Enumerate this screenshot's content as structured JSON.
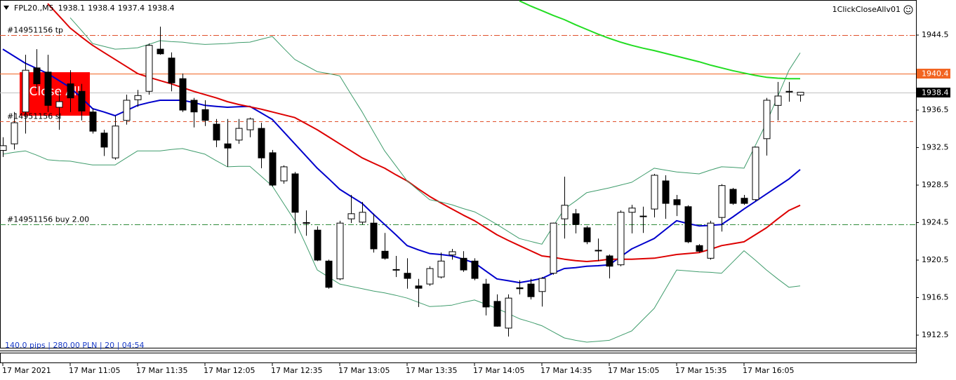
{
  "chart_data": {
    "type": "candlestick",
    "symbol": "FPL20.,M5",
    "ea_name": "1ClickCloseAllv01",
    "button_label": "Close All",
    "status_text": "140.0 pips | 280.00 PLN | 20 | 04:54",
    "categories": [
      "17 Mar 2021",
      null,
      null,
      null,
      null,
      null,
      "17 Mar 11:05",
      null,
      null,
      null,
      null,
      null,
      "17 Mar 11:35",
      null,
      null,
      null,
      null,
      null,
      "17 Mar 12:05",
      null,
      null,
      null,
      null,
      null,
      "17 Mar 12:35",
      null,
      null,
      null,
      null,
      null,
      "17 Mar 13:05",
      null,
      null,
      null,
      null,
      null,
      "17 Mar 13:35",
      null,
      null,
      null,
      null,
      null,
      "17 Mar 14:05",
      null,
      null,
      null,
      null,
      null,
      "17 Mar 14:35",
      null,
      null,
      null,
      null,
      null,
      "17 Mar 15:05",
      null,
      null,
      null,
      null,
      null,
      "17 Mar 15:35",
      null,
      null,
      null,
      null,
      null,
      "17 Mar 16:05",
      null,
      null,
      null,
      null,
      null
    ],
    "open": [
      1932.2,
      1932.9,
      1936.3,
      1941.0,
      1940.55,
      1936.8,
      1939.3,
      1938.5,
      1936.3,
      1934.05,
      1931.4,
      1935.4,
      1937.6,
      1938.5,
      1943.0,
      1942.05,
      1939.85,
      1937.55,
      1936.55,
      1935.0,
      1932.9,
      1933.3,
      1934.4,
      1934.55,
      1931.95,
      1928.95,
      1929.7,
      1924.5,
      1923.7,
      1920.4,
      1918.5,
      1924.9,
      1924.55,
      1924.45,
      1921.45,
      1919.45,
      1919.1,
      1917.75,
      1917.95,
      1918.7,
      1921.05,
      1920.7,
      1920.4,
      1917.95,
      1916.1,
      1913.25,
      1917.55,
      1917.95,
      1917.15,
      1919.1,
      1924.9,
      1925.45,
      1923.95,
      1921.55,
      1920.95,
      1920.0,
      1925.6,
      1925.2,
      1925.95,
      1928.95,
      1926.95,
      1926.2,
      1922.05,
      1920.7,
      1925.05,
      1928.05,
      1927.1,
      1926.95,
      1933.45,
      1937.0,
      1938.5,
      1938.1
    ],
    "high": [
      1933.6,
      1936.3,
      1942.4,
      1943.0,
      1942.4,
      1938.5,
      1940.75,
      1939.3,
      1936.65,
      1934.4,
      1935.9,
      1938.15,
      1938.65,
      1943.6,
      1945.4,
      1942.65,
      1940.4,
      1937.8,
      1937.55,
      1935.55,
      1935.55,
      1935.55,
      1935.7,
      1935.15,
      1932.25,
      1930.6,
      1929.9,
      1925.8,
      1924.1,
      1920.55,
      1924.7,
      1927.45,
      1926.7,
      1925.45,
      1923.4,
      1920.95,
      1920.7,
      1918.5,
      1919.85,
      1921.3,
      1921.7,
      1921.45,
      1920.7,
      1918.5,
      1916.85,
      1916.85,
      1918.35,
      1918.5,
      1918.7,
      1924.5,
      1929.4,
      1925.95,
      1924.15,
      1922.8,
      1921.1,
      1925.8,
      1926.4,
      1926.2,
      1929.7,
      1929.55,
      1927.45,
      1926.35,
      1922.2,
      1924.7,
      1928.6,
      1928.2,
      1927.45,
      1932.6,
      1937.8,
      1939.5,
      1939.5,
      1938.4
    ],
    "low": [
      1931.5,
      1932.3,
      1934.0,
      1938.5,
      1936.3,
      1934.4,
      1936.3,
      1935.4,
      1934.0,
      1931.6,
      1931.2,
      1934.95,
      1936.85,
      1938.15,
      1942.4,
      1938.5,
      1936.3,
      1934.65,
      1934.8,
      1932.55,
      1930.45,
      1932.9,
      1933.6,
      1930.3,
      1928.35,
      1928.65,
      1923.35,
      1923.1,
      1920.4,
      1917.45,
      1918.35,
      1924.45,
      1924.3,
      1921.3,
      1920.55,
      1918.7,
      1917.45,
      1915.5,
      1917.75,
      1918.55,
      1920.55,
      1919.25,
      1918.35,
      1914.6,
      1913.4,
      1912.35,
      1916.85,
      1916.3,
      1915.55,
      1918.95,
      1922.8,
      1923.35,
      1922.2,
      1920.4,
      1918.55,
      1919.85,
      1923.35,
      1923.4,
      1925.05,
      1924.9,
      1925.2,
      1922.3,
      1921.3,
      1920.55,
      1923.55,
      1926.4,
      1926.4,
      1926.8,
      1931.65,
      1935.4,
      1937.4,
      1937.4
    ],
    "close": [
      1932.7,
      1935.15,
      1940.75,
      1939.3,
      1937.0,
      1937.4,
      1937.8,
      1936.4,
      1934.25,
      1932.55,
      1934.8,
      1937.55,
      1938.05,
      1943.4,
      1942.5,
      1939.4,
      1936.5,
      1936.3,
      1935.4,
      1933.3,
      1932.45,
      1934.55,
      1935.55,
      1931.4,
      1928.5,
      1930.45,
      1925.6,
      1924.45,
      1920.5,
      1917.6,
      1924.45,
      1925.45,
      1925.6,
      1921.7,
      1920.7,
      1919.5,
      1918.55,
      1917.5,
      1919.6,
      1920.4,
      1921.4,
      1919.45,
      1918.55,
      1915.5,
      1913.45,
      1916.45,
      1917.45,
      1916.6,
      1918.55,
      1924.45,
      1926.35,
      1924.3,
      1922.45,
      1921.5,
      1919.85,
      1925.6,
      1926.05,
      1925.15,
      1929.55,
      1926.55,
      1926.4,
      1922.45,
      1921.45,
      1924.45,
      1928.45,
      1926.55,
      1926.55,
      1932.55,
      1937.55,
      1938.0,
      1938.45,
      1938.4
    ],
    "up_color": "#ffffff",
    "down_color": "#000000",
    "wick_color": "#000000",
    "overlays": [
      {
        "color": "#0000cc",
        "line_width": 2,
        "values": [
          1943.0,
          1942.25,
          1941.5,
          1940.95,
          1940.4,
          1939.65,
          1938.9,
          1937.8,
          1936.65,
          1936.3,
          1935.9,
          1936.45,
          1937.0,
          1937.3,
          1937.55,
          1937.55,
          1937.55,
          1937.3,
          1937.0,
          1936.9,
          1936.8,
          1936.85,
          1936.9,
          1936.2,
          1935.5,
          1934.2,
          1932.9,
          1931.6,
          1930.3,
          1929.2,
          1928.05,
          1927.3,
          1926.55,
          1925.4,
          1924.3,
          1923.2,
          1922.05,
          1921.6,
          1921.2,
          1921.1,
          1920.95,
          1920.6,
          1920.2,
          1919.35,
          1918.5,
          1918.3,
          1918.1,
          1918.3,
          1918.55,
          1919.1,
          1919.6,
          1919.7,
          1919.85,
          1919.9,
          1920.0,
          1920.85,
          1921.7,
          1922.25,
          1922.8,
          1923.75,
          1924.7,
          1924.4,
          1924.15,
          1924.2,
          1924.3,
          1925.1,
          1925.95,
          1926.75,
          1927.55,
          1928.35,
          1929.15,
          1930.15
        ]
      },
      {
        "color": "#dd0000",
        "line_width": 2,
        "values": [
          null,
          null,
          null,
          null,
          1947.85,
          1946.55,
          1945.25,
          1944.3,
          1943.4,
          1942.65,
          1941.9,
          1941.15,
          1940.4,
          1940.0,
          1939.65,
          1939.3,
          1938.9,
          1938.5,
          1938.15,
          1937.8,
          1937.4,
          1937.1,
          1936.85,
          1936.6,
          1936.3,
          1936.0,
          1935.7,
          1935.05,
          1934.4,
          1933.65,
          1932.9,
          1932.15,
          1931.4,
          1930.85,
          1930.3,
          1929.6,
          1928.95,
          1928.1,
          1927.3,
          1926.6,
          1925.95,
          1925.3,
          1924.7,
          1923.95,
          1923.2,
          1922.6,
          1922.05,
          1921.5,
          1920.95,
          1920.8,
          1920.6,
          1920.45,
          1920.35,
          1920.45,
          1920.6,
          1920.6,
          1920.6,
          1920.65,
          1920.7,
          1920.9,
          1921.1,
          1921.2,
          1921.3,
          1921.65,
          1922.05,
          1922.25,
          1922.45,
          1923.2,
          1923.95,
          1924.9,
          1925.8,
          1926.35
        ]
      },
      {
        "color": "#22dd22",
        "line_width": 2,
        "values": [
          null,
          null,
          null,
          null,
          null,
          null,
          null,
          null,
          null,
          null,
          null,
          null,
          null,
          null,
          null,
          null,
          null,
          null,
          null,
          null,
          null,
          null,
          null,
          null,
          null,
          null,
          null,
          null,
          null,
          null,
          null,
          null,
          null,
          null,
          null,
          null,
          null,
          null,
          null,
          null,
          null,
          null,
          null,
          null,
          null,
          null,
          1948.15,
          1947.6,
          1947.1,
          1946.6,
          1946.15,
          1945.6,
          1945.1,
          1944.6,
          1944.15,
          1943.75,
          1943.4,
          1943.1,
          1942.85,
          1942.55,
          1942.25,
          1941.95,
          1941.65,
          1941.3,
          1941.0,
          1940.7,
          1940.45,
          1940.2,
          1940.0,
          1939.9,
          1939.85,
          1939.85
        ]
      },
      {
        "color": "#3f9c6c",
        "line_width": 1,
        "values": [
          null,
          null,
          null,
          null,
          null,
          null,
          1946.35,
          1945.0,
          1943.6,
          1943.3,
          1943.0,
          1943.05,
          1943.15,
          1943.5,
          1943.9,
          1943.8,
          1943.75,
          1943.6,
          1943.5,
          1943.55,
          1943.6,
          1943.7,
          1943.75,
          1944.05,
          1944.35,
          1943.1,
          1941.9,
          1941.25,
          1940.6,
          1940.4,
          1940.15,
          1938.2,
          1936.3,
          1934.2,
          1932.15,
          1930.55,
          1928.95,
          1927.95,
          1926.95,
          1926.7,
          1926.4,
          1926.0,
          1925.65,
          1925.0,
          1924.3,
          1923.55,
          1922.8,
          1922.5,
          1922.2,
          1924.1,
          1925.95,
          1926.8,
          1927.7,
          1927.95,
          1928.2,
          1928.5,
          1928.8,
          1929.55,
          1930.3,
          1930.1,
          1929.9,
          1929.8,
          1929.7,
          1930.1,
          1930.45,
          1930.4,
          1930.3,
          1932.7,
          1935.15,
          1937.95,
          1940.75,
          1942.6
        ]
      },
      {
        "color": "#3f9c6c",
        "line_width": 1,
        "values": [
          1931.8,
          1932.0,
          1932.15,
          1931.7,
          1931.2,
          1931.1,
          1931.05,
          1930.85,
          1930.65,
          1930.65,
          1930.65,
          1931.4,
          1932.15,
          1932.15,
          1932.15,
          1932.3,
          1932.4,
          1932.1,
          1931.8,
          1931.1,
          1930.45,
          1930.5,
          1930.5,
          1929.45,
          1928.4,
          1926.55,
          1924.7,
          1922.1,
          1919.45,
          1918.7,
          1917.95,
          1917.7,
          1917.45,
          1917.2,
          1917.0,
          1916.75,
          1916.45,
          1916.0,
          1915.55,
          1915.6,
          1915.7,
          1916.0,
          1916.25,
          1915.8,
          1915.35,
          1914.8,
          1914.25,
          1913.9,
          1913.5,
          1912.85,
          1912.2,
          1911.95,
          1911.75,
          1911.85,
          1911.95,
          1912.45,
          1912.95,
          1914.15,
          1915.35,
          1917.4,
          1919.45,
          1919.35,
          1919.25,
          1919.2,
          1919.1,
          1920.3,
          1921.5,
          1920.5,
          1919.45,
          1918.5,
          1917.6,
          1917.75
        ]
      }
    ],
    "levels": [
      {
        "label": "#14951156 tp",
        "value": 1944.5,
        "color": "#e0502a",
        "style": "dashdot"
      },
      {
        "value": 1940.4,
        "color": "#f26522",
        "style": "solid",
        "price_tag": true
      },
      {
        "label": "#14951156 sl",
        "value": 1935.3,
        "color": "#e0502a",
        "style": "dash"
      },
      {
        "label": "#14951156 buy 2.00",
        "value": 1924.3,
        "color": "#2e8b3a",
        "style": "dashdot"
      }
    ],
    "current_price_color": "#c0c0c0",
    "ylim": [
      1911.08,
      1948.24
    ],
    "yticks": [
      1912.5,
      1916.5,
      1920.5,
      1924.5,
      1928.5,
      1932.5,
      1936.5,
      1940.5,
      1944.5
    ]
  }
}
